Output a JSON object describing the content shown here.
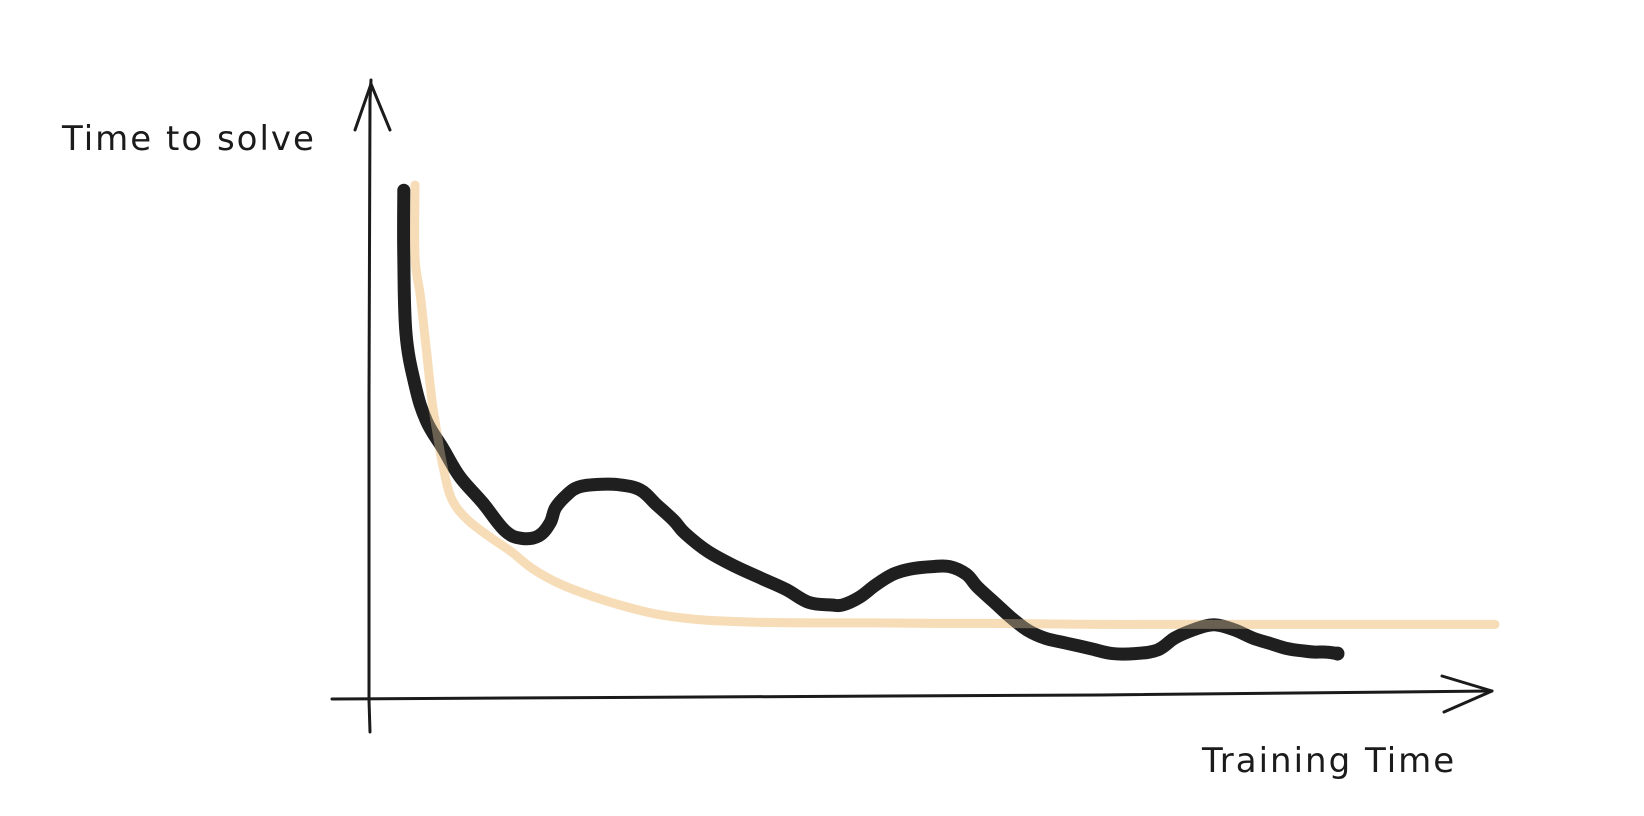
{
  "chart_data": {
    "type": "line",
    "title": "",
    "xlabel": "Training Time",
    "ylabel": "Time to solve",
    "grid": false,
    "legend": "none",
    "xlim": [
      0,
      100
    ],
    "ylim": [
      0,
      100
    ],
    "series": [
      {
        "color": "#1f1f1f",
        "x": [
          3,
          3,
          3.2,
          4,
          5,
          6.5,
          8,
          10,
          12,
          13.5,
          15,
          16,
          16.5,
          17.5,
          18.5,
          20,
          22,
          24,
          25.5,
          27,
          28,
          30,
          32.5,
          35,
          37,
          39,
          41,
          42,
          43.5,
          45,
          46.5,
          48,
          50,
          51.5,
          53,
          54,
          55.5,
          57,
          58.5,
          60,
          62,
          64,
          66,
          68,
          70,
          71.5,
          73,
          74.5,
          75.5,
          77,
          78.5,
          80,
          81.5,
          83,
          84,
          85,
          86
        ],
        "y": [
          98,
          85,
          70,
          60,
          53,
          47.5,
          42,
          37,
          31.5,
          30,
          30.5,
          33,
          36,
          38.5,
          40,
          40.5,
          40.5,
          39.5,
          36.5,
          33.5,
          31,
          27.5,
          24.5,
          22,
          20,
          17.5,
          17,
          17,
          18.5,
          21,
          23,
          24,
          24.5,
          24.5,
          23,
          20.5,
          17.5,
          14.5,
          12,
          10.5,
          9.5,
          8.5,
          7.5,
          7.5,
          8.2,
          10.5,
          12,
          13,
          13,
          12,
          10.5,
          9.5,
          8.5,
          8,
          7.8,
          7.8,
          7.5
        ]
      },
      {
        "color": "#f6d9b0",
        "x": [
          4,
          4,
          4.5,
          5,
          5.5,
          6,
          6.5,
          7.2,
          8.5,
          10.5,
          12.5,
          14.5,
          17,
          20,
          23,
          26,
          30,
          35,
          40,
          45,
          50,
          55,
          60,
          65,
          70,
          75,
          80,
          85,
          90,
          95,
          100
        ],
        "y": [
          99,
          85,
          77,
          67,
          57,
          50,
          44,
          38,
          34,
          30.5,
          27.5,
          24,
          21,
          18.5,
          16.5,
          15,
          14,
          13.6,
          13.5,
          13.5,
          13.4,
          13.4,
          13.3,
          13.2,
          13.2,
          13.2,
          13.2,
          13.2,
          13.2,
          13.2,
          13.2
        ]
      }
    ]
  }
}
